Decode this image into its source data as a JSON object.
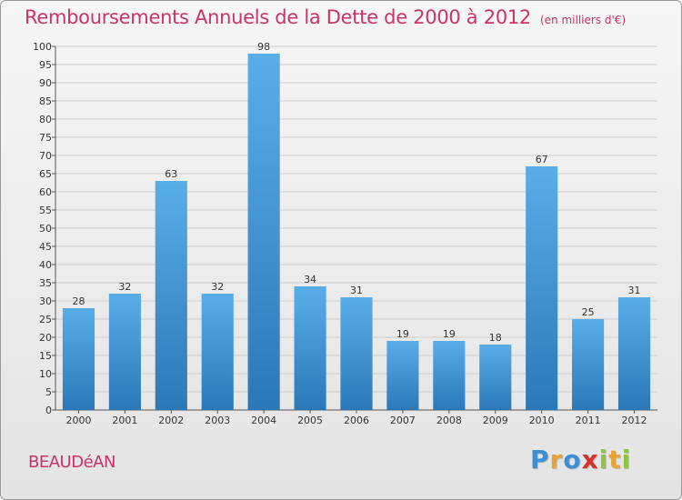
{
  "header": {
    "title": "Remboursements Annuels de la Dette de 2000 à 2012",
    "subtitle": "(en milliers d'€)"
  },
  "commune": "BEAUDéAN",
  "logo_letters": [
    "P",
    "r",
    "o",
    "x",
    "i",
    "t",
    "i"
  ],
  "colors": {
    "title": "#c8336a",
    "bar_light": "#5aaee8",
    "bar_dark": "#2a78b8",
    "grid": "#cccccc"
  },
  "chart_data": {
    "type": "bar",
    "title": "Remboursements Annuels de la Dette de 2000 à 2012",
    "subtitle": "(en milliers d'€)",
    "xlabel": "",
    "ylabel": "",
    "categories": [
      "2000",
      "2001",
      "2002",
      "2003",
      "2004",
      "2005",
      "2006",
      "2007",
      "2008",
      "2009",
      "2010",
      "2011",
      "2012"
    ],
    "values": [
      28,
      32,
      63,
      32,
      98,
      34,
      31,
      19,
      19,
      18,
      67,
      25,
      31
    ],
    "ylim": [
      0,
      100
    ],
    "yticks": [
      0,
      5,
      10,
      15,
      20,
      25,
      30,
      35,
      40,
      45,
      50,
      55,
      60,
      65,
      70,
      75,
      80,
      85,
      90,
      95,
      100
    ],
    "grid": true,
    "legend": "none"
  }
}
